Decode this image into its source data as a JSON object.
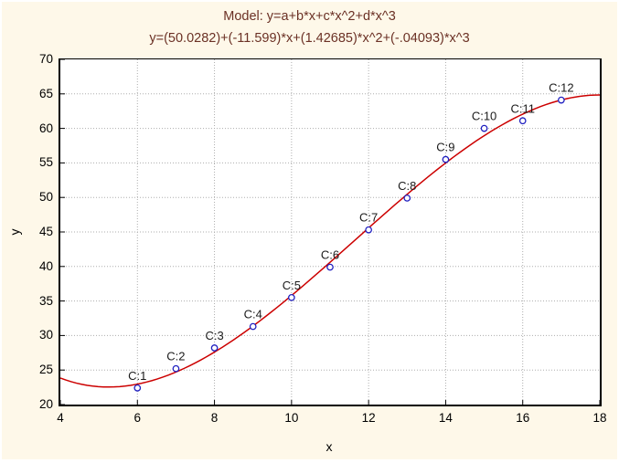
{
  "chart_data": {
    "type": "scatter",
    "title": "Model: y=a+b*x+c*x^2+d*x^3",
    "subtitle": "y=(50.0282)+(-11.599)*x+(1.42685)*x^2+(-.04093)*x^3",
    "xlabel": "x",
    "ylabel": "y",
    "xlim": [
      4,
      18
    ],
    "ylim": [
      20,
      70
    ],
    "x_ticks": [
      4,
      6,
      8,
      10,
      12,
      14,
      16,
      18
    ],
    "y_ticks": [
      20,
      25,
      30,
      35,
      40,
      45,
      50,
      55,
      60,
      65,
      70
    ],
    "grid": "dotted",
    "legend_position": "none",
    "points": [
      {
        "label": "C:1",
        "x": 6,
        "y": 22.4
      },
      {
        "label": "C:2",
        "x": 7,
        "y": 25.2
      },
      {
        "label": "C:3",
        "x": 8,
        "y": 28.2
      },
      {
        "label": "C:4",
        "x": 9,
        "y": 31.3
      },
      {
        "label": "C:5",
        "x": 10,
        "y": 35.5
      },
      {
        "label": "C:6",
        "x": 11,
        "y": 39.9
      },
      {
        "label": "C:7",
        "x": 12,
        "y": 45.3
      },
      {
        "label": "C:8",
        "x": 13,
        "y": 49.9
      },
      {
        "label": "C:9",
        "x": 14,
        "y": 55.5
      },
      {
        "label": "C:10",
        "x": 15,
        "y": 60.0
      },
      {
        "label": "C:11",
        "x": 16,
        "y": 61.1
      },
      {
        "label": "C:12",
        "x": 17,
        "y": 64.1
      }
    ],
    "fit_curve": {
      "type": "cubic",
      "a": 50.0282,
      "b": -11.599,
      "c": 1.42685,
      "d": -0.04093,
      "x_start": 4,
      "x_end": 18
    },
    "colors": {
      "page_bg": "#FEF8E9",
      "plot_bg": "#FFFFFF",
      "grid": "#ADADAD",
      "axis": "#000000",
      "curve": "#CC0000",
      "point": "#2020C0",
      "point_label": "#1A1A1A",
      "title": "#6B3125"
    }
  }
}
